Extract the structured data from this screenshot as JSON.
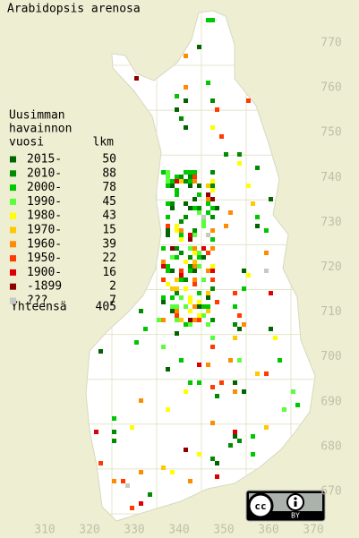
{
  "title": "Arabidopsis arenosa",
  "legend": {
    "heading": [
      "Uusimman",
      "havainnon"
    ],
    "col_headers": [
      "vuosi",
      "lkm"
    ],
    "rows": [
      {
        "label": "2015-",
        "count": 50,
        "color": "#006400"
      },
      {
        "label": "2010-",
        "count": 88,
        "color": "#008c00"
      },
      {
        "label": "2000-",
        "count": 78,
        "color": "#00c800"
      },
      {
        "label": "1990-",
        "count": 45,
        "color": "#5aff3c"
      },
      {
        "label": "1980-",
        "count": 43,
        "color": "#ffff00"
      },
      {
        "label": "1970-",
        "count": 15,
        "color": "#ffc800"
      },
      {
        "label": "1960-",
        "count": 39,
        "color": "#ff8c00"
      },
      {
        "label": "1950-",
        "count": 22,
        "color": "#ff3c00"
      },
      {
        "label": "1900-",
        "count": 16,
        "color": "#dc0000"
      },
      {
        "label": "-1899",
        "count": 2,
        "color": "#8c0000"
      },
      {
        "label": "???",
        "count": 7,
        "color": "#c8c8c8"
      }
    ],
    "total": {
      "label": "Yhteensä",
      "count": 405
    }
  },
  "x_labels": [
    310,
    320,
    330,
    340,
    350,
    360,
    370
  ],
  "y_labels": [
    770,
    760,
    750,
    740,
    730,
    720,
    710,
    700,
    690,
    680,
    670
  ],
  "license_label": "BY"
}
